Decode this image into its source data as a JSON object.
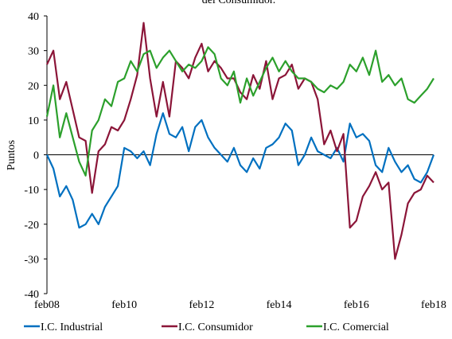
{
  "chart_data": {
    "type": "line",
    "title": "del Consumidor.",
    "y_label": "Puntos",
    "categories": [
      "feb08",
      null,
      null,
      null,
      null,
      null,
      null,
      null,
      null,
      null,
      null,
      null,
      "feb10",
      null,
      null,
      null,
      null,
      null,
      null,
      null,
      null,
      null,
      null,
      null,
      "feb12",
      null,
      null,
      null,
      null,
      null,
      null,
      null,
      null,
      null,
      null,
      null,
      "feb14",
      null,
      null,
      null,
      null,
      null,
      null,
      null,
      null,
      null,
      null,
      null,
      "feb16",
      null,
      null,
      null,
      null,
      null,
      null,
      null,
      null,
      null,
      null,
      null,
      "feb18"
    ],
    "series": [
      {
        "name": "I.C. Industrial",
        "color": "#0070c0",
        "values": [
          0,
          -4,
          -12,
          -9,
          -13,
          -21,
          -20,
          -17,
          -20,
          -15,
          -12,
          -9,
          2,
          1,
          -1,
          1,
          -3,
          6,
          12,
          6,
          5,
          8,
          1,
          8,
          10,
          5,
          2,
          0,
          -2,
          2,
          -3,
          -5,
          -1,
          -4,
          2,
          3,
          5,
          9,
          7,
          -3,
          0,
          5,
          1,
          0,
          -1,
          2,
          -2,
          9,
          5,
          6,
          4,
          -3,
          -5,
          2,
          -2,
          -5,
          -3,
          -7,
          -8,
          -5,
          0
        ]
      },
      {
        "name": "I.C. Consumidor",
        "color": "#8b1538",
        "values": [
          26,
          30,
          16,
          21,
          13,
          5,
          4,
          -11,
          1,
          3,
          8,
          7,
          10,
          16,
          23,
          38,
          22,
          11,
          21,
          11,
          27,
          25,
          22,
          28,
          32,
          24,
          27,
          25,
          22,
          22,
          18,
          16,
          23,
          19,
          27,
          16,
          22,
          23,
          26,
          19,
          22,
          21,
          16,
          3,
          7,
          1,
          6,
          -21,
          -19,
          -12,
          -9,
          -5,
          -10,
          -8,
          -30,
          -23,
          -14,
          -11,
          -10,
          -6,
          -8
        ]
      },
      {
        "name": "I.C. Comercial",
        "color": "#2ca02c",
        "values": [
          11,
          20,
          5,
          12,
          5,
          -2,
          -6,
          7,
          10,
          16,
          14,
          21,
          22,
          27,
          24,
          29,
          30,
          25,
          28,
          30,
          27,
          24,
          26,
          25,
          27,
          31,
          29,
          22,
          20,
          24,
          15,
          22,
          17,
          21,
          25,
          28,
          24,
          27,
          24,
          22,
          22,
          21,
          19,
          18,
          20,
          19,
          21,
          26,
          24,
          28,
          23,
          30,
          21,
          23,
          20,
          22,
          16,
          15,
          17,
          19,
          22
        ]
      }
    ],
    "ylim": [
      -40,
      40
    ],
    "yticks": [
      -40,
      -30,
      -20,
      -10,
      0,
      10,
      20,
      30,
      40
    ]
  }
}
